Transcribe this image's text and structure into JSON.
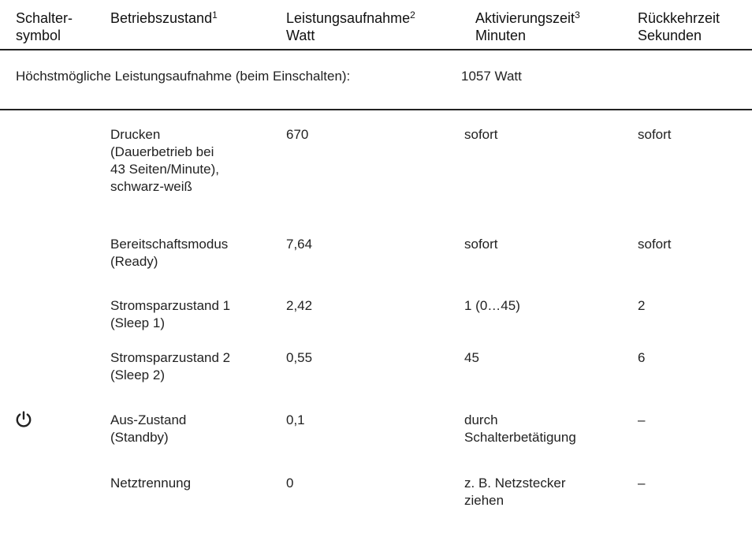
{
  "headers": {
    "symbol": [
      "Schalter-",
      "symbol"
    ],
    "state": "Betriebszustand",
    "state_sup": "1",
    "power": "Leistungsaufnahme",
    "power_sup": "2",
    "power_unit": "Watt",
    "activation": "Aktivierungszeit",
    "activation_sup": "3",
    "activation_unit": "Minuten",
    "return": "Rückkehrzeit",
    "return_unit": "Sekunden"
  },
  "max_power": {
    "label": "Höchstmögliche Leistungsaufnahme (beim Einschalten):",
    "value": "1057 Watt"
  },
  "rows": [
    {
      "state": [
        "Drucken",
        "(Dauerbetrieb bei",
        "43 Seiten/Minute),",
        "schwarz-weiß"
      ],
      "power": "670",
      "activation": [
        "sofort"
      ],
      "return": "sofort"
    },
    {
      "state": [
        "Bereitschaftsmodus",
        "(Ready)"
      ],
      "power": "7,64",
      "activation": [
        "sofort"
      ],
      "return": "sofort"
    },
    {
      "state": [
        "Stromsparzustand 1",
        "(Sleep 1)"
      ],
      "power": "2,42",
      "activation": [
        "1 (0…45)"
      ],
      "return": "2"
    },
    {
      "state": [
        "Stromsparzustand 2",
        "(Sleep 2)"
      ],
      "power": "0,55",
      "activation": [
        "45"
      ],
      "return": "6"
    },
    {
      "state": [
        "Aus-Zustand",
        "(Standby)"
      ],
      "power": "0,1",
      "activation": [
        "durch",
        "Schalterbetätigung"
      ],
      "return": "–",
      "icon": "power-icon"
    },
    {
      "state": [
        "Netztrennung"
      ],
      "power": "0",
      "activation": [
        "z. B. Netzstecker",
        "ziehen"
      ],
      "return": "–"
    }
  ]
}
